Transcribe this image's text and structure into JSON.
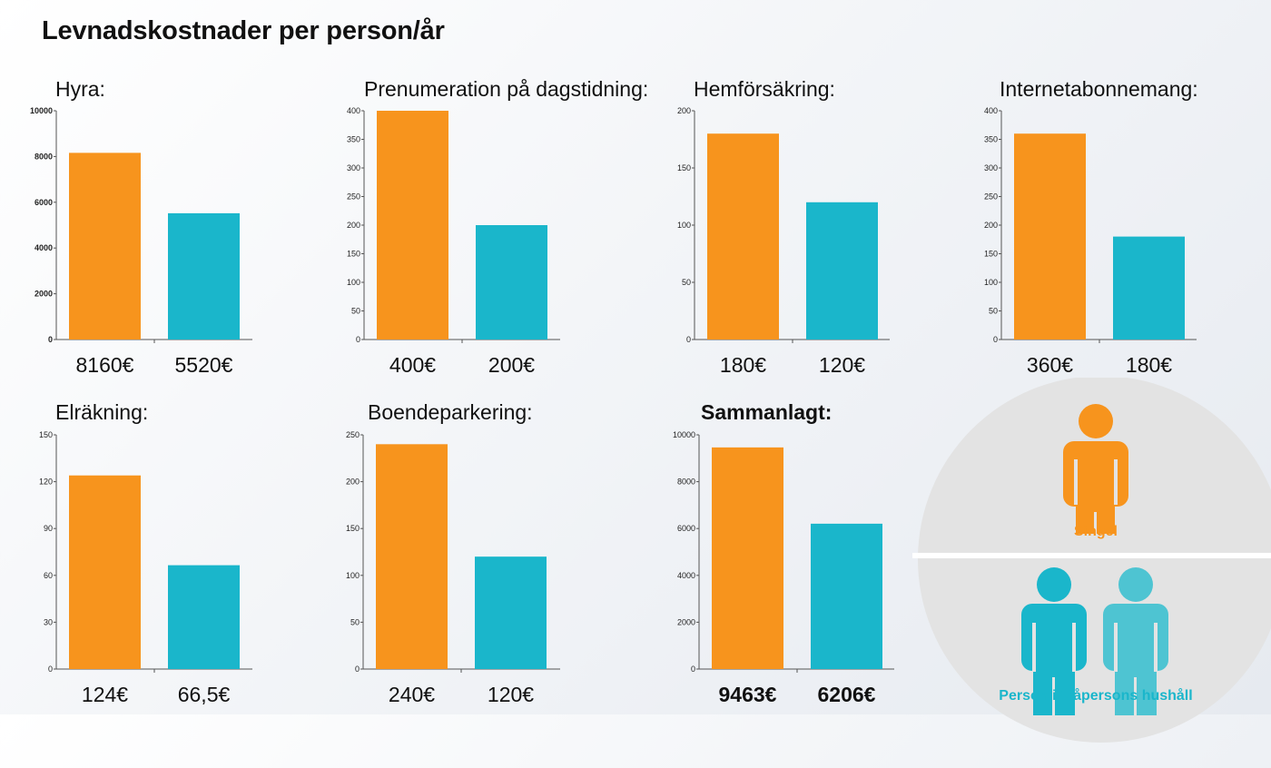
{
  "page": {
    "title": "Levnadskostnader per person/år"
  },
  "colors": {
    "singel": "#F7941D",
    "tvapersons": "#1AB6CB",
    "tvapersons_light": "#4EC4D2",
    "legend_circle": "#E3E3E3",
    "axis": "#555555"
  },
  "legend": {
    "singel_label": "Singel",
    "hushall_label": "Person i tvåpersons hushåll"
  },
  "chart_data": [
    {
      "type": "bar",
      "title": "Hyra:",
      "categories": [
        "Singel",
        "Person i tvåpersons hushåll"
      ],
      "values": [
        8160,
        5520
      ],
      "value_labels": [
        "8160€",
        "5520€"
      ],
      "ylim": [
        0,
        10000
      ],
      "yticks": [
        0,
        2000,
        4000,
        6000,
        8000,
        10000
      ],
      "bold_ticks": true
    },
    {
      "type": "bar",
      "title": "Prenumeration på dagstidning:",
      "categories": [
        "Singel",
        "Person i tvåpersons hushåll"
      ],
      "values": [
        400,
        200
      ],
      "value_labels": [
        "400€",
        "200€"
      ],
      "ylim": [
        0,
        400
      ],
      "yticks": [
        0,
        50,
        100,
        150,
        200,
        250,
        300,
        350,
        400
      ]
    },
    {
      "type": "bar",
      "title": "Hemförsäkring:",
      "categories": [
        "Singel",
        "Person i tvåpersons hushåll"
      ],
      "values": [
        180,
        120
      ],
      "value_labels": [
        "180€",
        "120€"
      ],
      "ylim": [
        0,
        200
      ],
      "yticks": [
        0,
        50,
        100,
        150,
        200
      ]
    },
    {
      "type": "bar",
      "title": "Internetabonnemang:",
      "categories": [
        "Singel",
        "Person i tvåpersons hushåll"
      ],
      "values": [
        360,
        180
      ],
      "value_labels": [
        "360€",
        "180€"
      ],
      "ylim": [
        0,
        400
      ],
      "yticks": [
        0,
        50,
        100,
        150,
        200,
        250,
        300,
        350,
        400
      ]
    },
    {
      "type": "bar",
      "title": "Elräkning:",
      "categories": [
        "Singel",
        "Person i tvåpersons hushåll"
      ],
      "values": [
        124,
        66.5
      ],
      "value_labels": [
        "124€",
        "66,5€"
      ],
      "ylim": [
        0,
        150
      ],
      "yticks": [
        0,
        30,
        60,
        90,
        120,
        150
      ]
    },
    {
      "type": "bar",
      "title": "Boendeparkering:",
      "categories": [
        "Singel",
        "Person i tvåpersons hushåll"
      ],
      "values": [
        240,
        120
      ],
      "value_labels": [
        "240€",
        "120€"
      ],
      "ylim": [
        0,
        250
      ],
      "yticks": [
        0,
        50,
        100,
        150,
        200,
        250
      ]
    },
    {
      "type": "bar",
      "title": "Sammanlagt:",
      "title_bold": true,
      "categories": [
        "Singel",
        "Person i tvåpersons hushåll"
      ],
      "values": [
        9463,
        6206
      ],
      "value_labels": [
        "9463€",
        "6206€"
      ],
      "labels_bold": true,
      "ylim": [
        0,
        10000
      ],
      "yticks": [
        0,
        2000,
        4000,
        6000,
        8000,
        10000
      ]
    }
  ]
}
